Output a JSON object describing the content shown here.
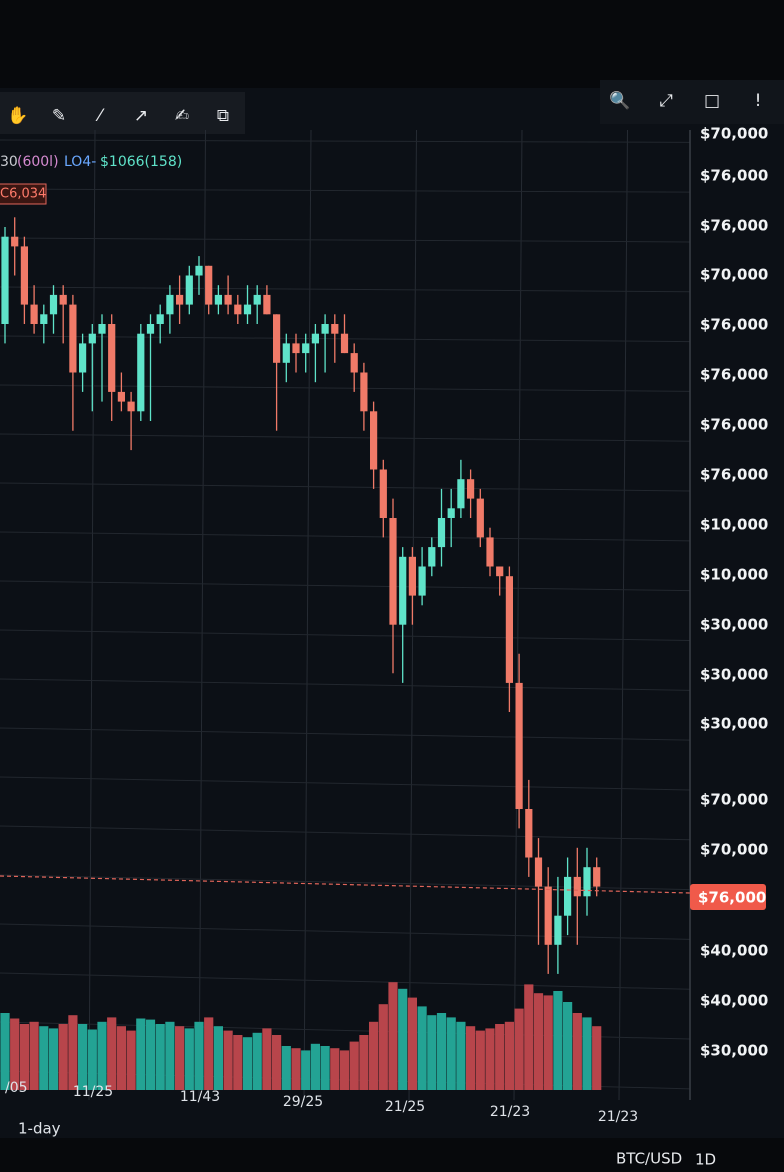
{
  "toolbar": {
    "tools": [
      "✋",
      "✎",
      "⁄",
      "↗",
      "✍",
      "⧉"
    ],
    "right_tools": [
      "🔍",
      "⤢",
      "□",
      "!"
    ]
  },
  "legend": {
    "period": "30",
    "ma": "(600l)",
    "low": "LO4-",
    "vol": "$1066(158)",
    "last_tag": "C6,034"
  },
  "price_axis_labels": [
    "$70,000",
    "$76,000",
    "$76,000",
    "$70,000",
    "$76,000",
    "$76,000",
    "$76,000",
    "$76,000",
    "$10,000",
    "$10,000",
    "$30,000",
    "$30,000",
    "$30,000",
    "$70,000",
    "$70,000",
    "$40,000",
    "$40,000",
    "$30,000"
  ],
  "current_price_tag": "$76,000",
  "date_labels": [
    "/05",
    "11/25",
    "11/43",
    "29/25",
    "21/25",
    "21/23",
    "21/23"
  ],
  "footer": {
    "interval": "1-day",
    "symbol": "BTC/USD",
    "timeframe": "1D"
  },
  "chart_data": {
    "type": "candlestick",
    "ylim": [
      0,
      100
    ],
    "up_color": "#5fe3c9",
    "down_color": "#f07a68",
    "candles": [
      {
        "open": 80,
        "high": 90,
        "low": 78,
        "close": 89
      },
      {
        "open": 89,
        "high": 91,
        "low": 85,
        "close": 88
      },
      {
        "open": 88,
        "high": 89,
        "low": 80,
        "close": 82
      },
      {
        "open": 82,
        "high": 84,
        "low": 79,
        "close": 80
      },
      {
        "open": 80,
        "high": 82,
        "low": 78,
        "close": 81
      },
      {
        "open": 81,
        "high": 84,
        "low": 79,
        "close": 83
      },
      {
        "open": 83,
        "high": 84,
        "low": 78,
        "close": 82
      },
      {
        "open": 82,
        "high": 83,
        "low": 69,
        "close": 75
      },
      {
        "open": 75,
        "high": 79,
        "low": 73,
        "close": 78
      },
      {
        "open": 78,
        "high": 80,
        "low": 71,
        "close": 79
      },
      {
        "open": 79,
        "high": 81,
        "low": 72,
        "close": 80
      },
      {
        "open": 80,
        "high": 81,
        "low": 70,
        "close": 73
      },
      {
        "open": 73,
        "high": 75,
        "low": 71,
        "close": 72
      },
      {
        "open": 72,
        "high": 73,
        "low": 67,
        "close": 71
      },
      {
        "open": 71,
        "high": 80,
        "low": 70,
        "close": 79
      },
      {
        "open": 79,
        "high": 81,
        "low": 70,
        "close": 80
      },
      {
        "open": 80,
        "high": 82,
        "low": 78,
        "close": 81
      },
      {
        "open": 81,
        "high": 84,
        "low": 79,
        "close": 83
      },
      {
        "open": 83,
        "high": 85,
        "low": 80,
        "close": 82
      },
      {
        "open": 82,
        "high": 86,
        "low": 81,
        "close": 85
      },
      {
        "open": 85,
        "high": 87,
        "low": 83,
        "close": 86
      },
      {
        "open": 86,
        "high": 86,
        "low": 81,
        "close": 82
      },
      {
        "open": 82,
        "high": 84,
        "low": 81,
        "close": 83
      },
      {
        "open": 83,
        "high": 85,
        "low": 81,
        "close": 82
      },
      {
        "open": 82,
        "high": 83,
        "low": 80,
        "close": 81
      },
      {
        "open": 81,
        "high": 84,
        "low": 80,
        "close": 82
      },
      {
        "open": 82,
        "high": 84,
        "low": 80,
        "close": 83
      },
      {
        "open": 83,
        "high": 84,
        "low": 81,
        "close": 81
      },
      {
        "open": 81,
        "high": 81,
        "low": 69,
        "close": 76
      },
      {
        "open": 76,
        "high": 79,
        "low": 74,
        "close": 78
      },
      {
        "open": 78,
        "high": 79,
        "low": 75,
        "close": 77
      },
      {
        "open": 77,
        "high": 79,
        "low": 75,
        "close": 78
      },
      {
        "open": 78,
        "high": 80,
        "low": 74,
        "close": 79
      },
      {
        "open": 79,
        "high": 81,
        "low": 75,
        "close": 80
      },
      {
        "open": 80,
        "high": 81,
        "low": 76,
        "close": 79
      },
      {
        "open": 79,
        "high": 81,
        "low": 77,
        "close": 77
      },
      {
        "open": 77,
        "high": 78,
        "low": 73,
        "close": 75
      },
      {
        "open": 75,
        "high": 76,
        "low": 69,
        "close": 71
      },
      {
        "open": 71,
        "high": 72,
        "low": 63,
        "close": 65
      },
      {
        "open": 65,
        "high": 66,
        "low": 58,
        "close": 60
      },
      {
        "open": 60,
        "high": 62,
        "low": 44,
        "close": 49
      },
      {
        "open": 49,
        "high": 57,
        "low": 43,
        "close": 56
      },
      {
        "open": 56,
        "high": 57,
        "low": 49,
        "close": 52
      },
      {
        "open": 52,
        "high": 57,
        "low": 51,
        "close": 55
      },
      {
        "open": 55,
        "high": 58,
        "low": 54,
        "close": 57
      },
      {
        "open": 57,
        "high": 63,
        "low": 55,
        "close": 60
      },
      {
        "open": 60,
        "high": 63,
        "low": 57,
        "close": 61
      },
      {
        "open": 61,
        "high": 66,
        "low": 60,
        "close": 64
      },
      {
        "open": 64,
        "high": 65,
        "low": 60,
        "close": 62
      },
      {
        "open": 62,
        "high": 63,
        "low": 57,
        "close": 58
      },
      {
        "open": 58,
        "high": 59,
        "low": 54,
        "close": 55
      },
      {
        "open": 55,
        "high": 55,
        "low": 52,
        "close": 54
      },
      {
        "open": 54,
        "high": 55,
        "low": 40,
        "close": 43
      },
      {
        "open": 43,
        "high": 46,
        "low": 28,
        "close": 30
      },
      {
        "open": 30,
        "high": 33,
        "low": 23,
        "close": 25
      },
      {
        "open": 25,
        "high": 27,
        "low": 16,
        "close": 22
      },
      {
        "open": 22,
        "high": 24,
        "low": 13,
        "close": 16
      },
      {
        "open": 16,
        "high": 23,
        "low": 13,
        "close": 19
      },
      {
        "open": 19,
        "high": 25,
        "low": 17,
        "close": 23
      },
      {
        "open": 23,
        "high": 26,
        "low": 16,
        "close": 21
      },
      {
        "open": 21,
        "high": 26,
        "low": 19,
        "close": 24
      },
      {
        "open": 24,
        "high": 25,
        "low": 21,
        "close": 22
      }
    ],
    "volume": {
      "ylim": [
        0,
        100
      ],
      "up_color": "#23a394",
      "down_color": "#b8454b",
      "values": [
        70,
        65,
        60,
        62,
        58,
        56,
        60,
        68,
        60,
        55,
        62,
        66,
        58,
        54,
        65,
        64,
        60,
        62,
        58,
        56,
        62,
        66,
        58,
        54,
        50,
        48,
        52,
        56,
        50,
        40,
        38,
        36,
        42,
        40,
        38,
        36,
        44,
        50,
        62,
        78,
        98,
        92,
        84,
        76,
        68,
        70,
        66,
        62,
        58,
        54,
        56,
        60,
        62,
        74,
        96,
        88,
        86,
        90,
        80,
        70,
        66,
        58
      ]
    }
  }
}
